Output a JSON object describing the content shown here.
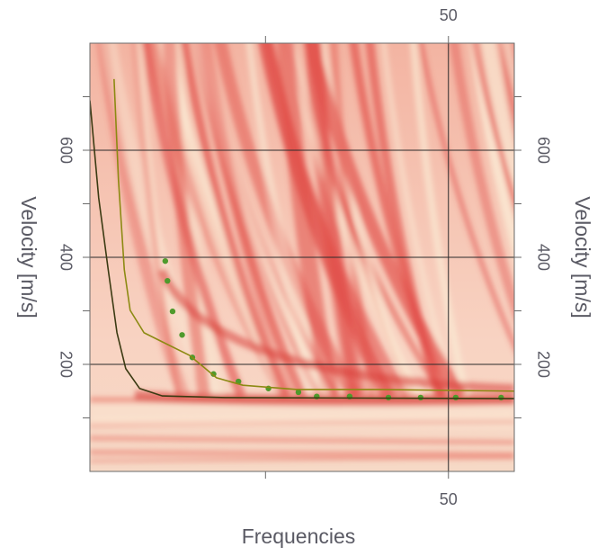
{
  "chart_data": {
    "type": "scatter",
    "xlabel": "Frequencies",
    "ylabel": "Velocity [m/s]",
    "xlim": [
      1,
      59
    ],
    "ylim": [
      0,
      800
    ],
    "xticks": [
      {
        "value": 25,
        "label": null
      },
      50
    ],
    "yticks": [
      {
        "value": 100,
        "label": null
      },
      200,
      {
        "value": 300,
        "label": null
      },
      400,
      {
        "value": 500,
        "label": null
      },
      600,
      {
        "value": 700,
        "label": null
      }
    ],
    "grid": true,
    "series": [
      {
        "mode": "markers",
        "color": "#4f9a2c",
        "x": [
          11.3,
          11.6,
          12.3,
          13.6,
          15.0,
          17.9,
          21.3,
          25.4,
          29.5,
          32.0,
          36.5,
          41.8,
          46.2,
          51.0,
          57.2
        ],
        "values": [
          393,
          356,
          299,
          255,
          213,
          182,
          168,
          155,
          148,
          140,
          140,
          138,
          138,
          138,
          138
        ]
      },
      {
        "mode": "line",
        "color": "#8c8a12",
        "x": [
          4.3,
          4.9,
          5.7,
          6.5,
          8.4,
          10.9,
          14.6,
          18.3,
          21.9,
          29.3,
          40.4,
          59
        ],
        "values": [
          733,
          545,
          377,
          301,
          259,
          242,
          217,
          175,
          161,
          153,
          153,
          150
        ]
      },
      {
        "mode": "line",
        "color": "#3b3a12",
        "x": [
          1,
          2.2,
          3.5,
          4.7,
          5.9,
          7.8,
          10.9,
          19.5,
          59
        ],
        "values": [
          693,
          511,
          377,
          259,
          192,
          155,
          141,
          138,
          136
        ]
      }
    ]
  }
}
